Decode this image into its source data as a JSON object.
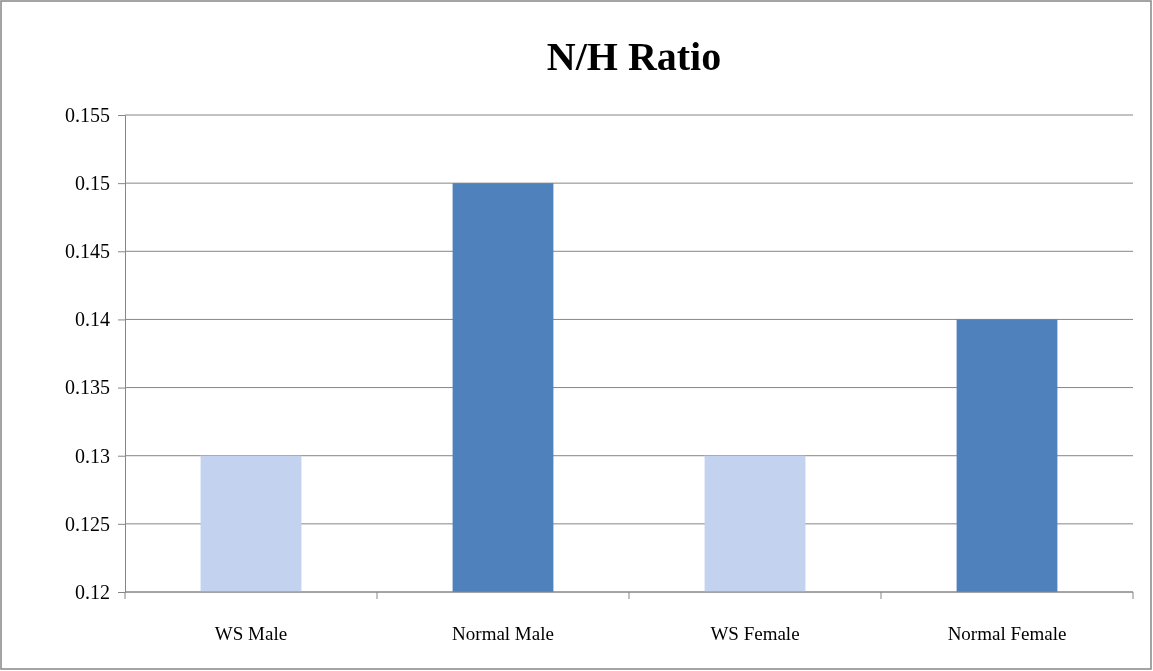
{
  "chart_data": {
    "type": "bar",
    "title": "N/H Ratio",
    "categories": [
      "WS Male",
      "Normal Male",
      "WS Female",
      "Normal Female"
    ],
    "values": [
      0.13,
      0.15,
      0.13,
      0.14
    ],
    "colors": [
      "#c3d2ee",
      "#4f81bd",
      "#c3d2ee",
      "#4f81bd"
    ],
    "ylim": [
      0.12,
      0.155
    ],
    "yticks": [
      0.12,
      0.125,
      0.13,
      0.135,
      0.14,
      0.145,
      0.15,
      0.155
    ],
    "grid": "y"
  }
}
